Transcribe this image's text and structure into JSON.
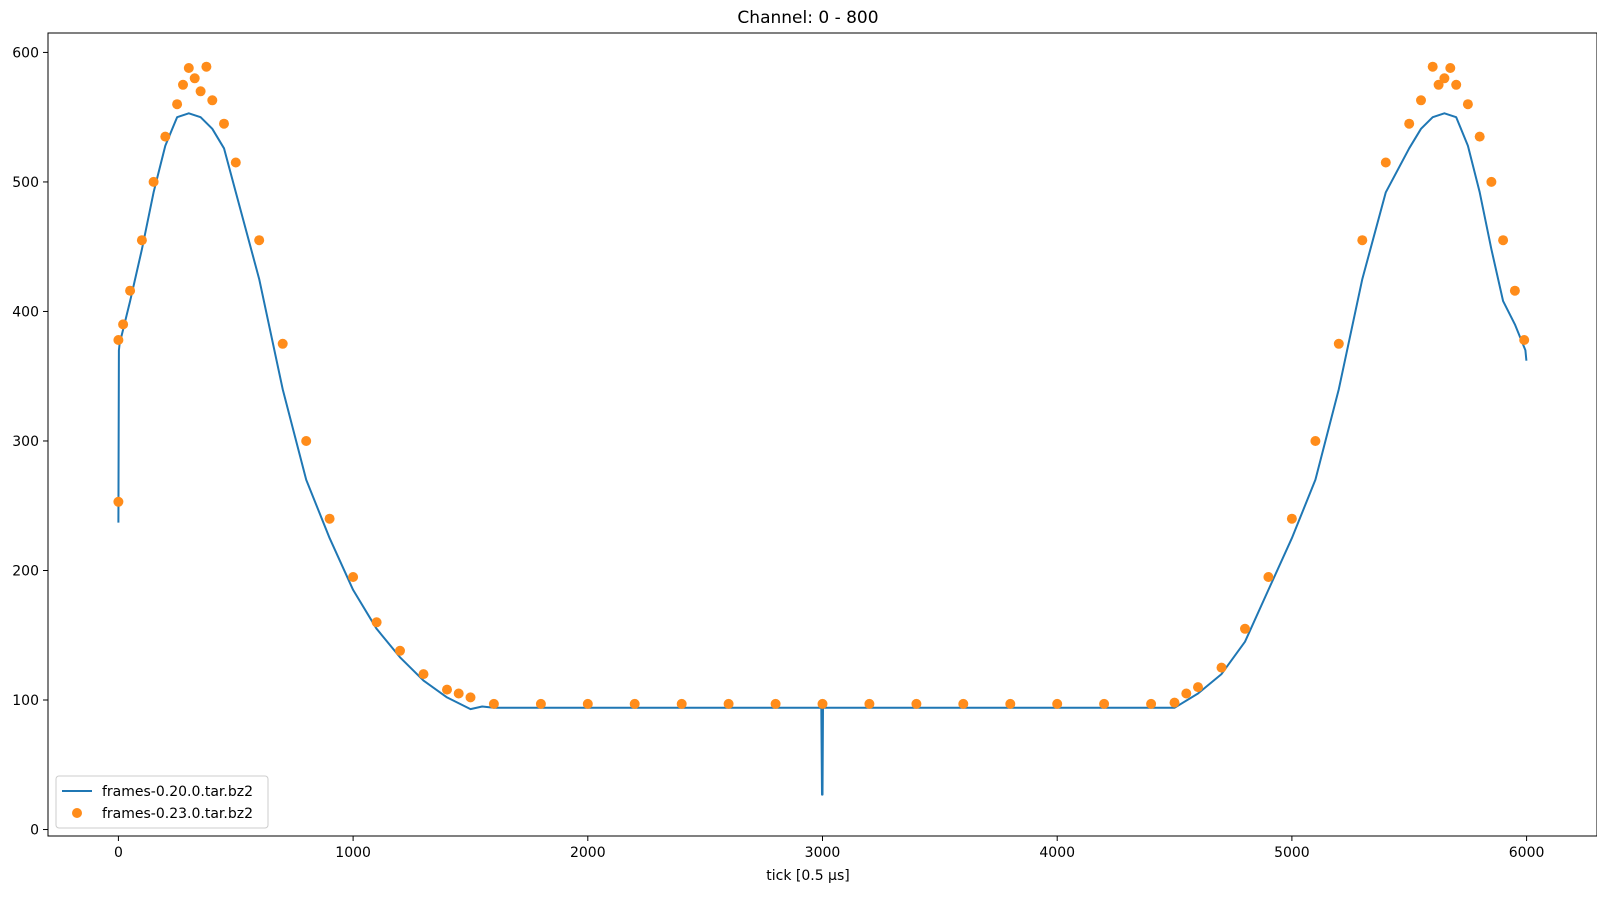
{
  "chart_data": {
    "type": "scatter",
    "title": "Channel: 0 - 800",
    "xlabel": "tick [0.5 μs]",
    "ylabel": "",
    "xlim": [
      -300,
      6300
    ],
    "ylim": [
      -5,
      615
    ],
    "x_ticks": [
      0,
      1000,
      2000,
      3000,
      4000,
      5000,
      6000
    ],
    "y_ticks": [
      0,
      100,
      200,
      300,
      400,
      500,
      600
    ],
    "grid": false,
    "legend_position": "lower-left",
    "series": [
      {
        "name": "frames-0.20.0.tar.bz2",
        "kind": "line",
        "color": "#1f77b4",
        "x": [
          0,
          2,
          5,
          50,
          100,
          150,
          200,
          250,
          300,
          350,
          400,
          450,
          500,
          600,
          700,
          800,
          900,
          1000,
          1100,
          1200,
          1300,
          1400,
          1500,
          1550,
          1600,
          2000,
          2500,
          2995,
          2998,
          3000,
          3002,
          3005,
          3500,
          4000,
          4450,
          4500,
          4600,
          4700,
          4800,
          4900,
          5000,
          5100,
          5200,
          5300,
          5400,
          5500,
          5550,
          5600,
          5650,
          5700,
          5750,
          5800,
          5850,
          5900,
          5950,
          5995,
          5999
        ],
        "y": [
          237,
          370,
          375,
          408,
          448,
          492,
          528,
          550,
          553,
          550,
          541,
          526,
          492,
          425,
          340,
          270,
          225,
          185,
          155,
          133,
          115,
          102,
          93,
          95,
          94,
          94,
          94,
          94,
          27,
          27,
          94,
          94,
          94,
          94,
          94,
          94,
          105,
          120,
          145,
          185,
          225,
          270,
          340,
          425,
          492,
          526,
          541,
          550,
          553,
          550,
          528,
          492,
          448,
          408,
          390,
          370,
          362
        ]
      },
      {
        "name": "frames-0.23.0.tar.bz2",
        "kind": "scatter",
        "color": "#ff8c1a",
        "x": [
          0,
          0,
          20,
          50,
          100,
          150,
          200,
          250,
          275,
          300,
          325,
          350,
          375,
          400,
          450,
          500,
          600,
          700,
          800,
          900,
          1000,
          1100,
          1200,
          1300,
          1400,
          1450,
          1500,
          1600,
          1800,
          2000,
          2200,
          2400,
          2600,
          2800,
          3000,
          3200,
          3400,
          3600,
          3800,
          4000,
          4200,
          4400,
          4500,
          4550,
          4600,
          4700,
          4800,
          4900,
          5000,
          5100,
          5200,
          5300,
          5400,
          5500,
          5550,
          5600,
          5625,
          5650,
          5675,
          5700,
          5750,
          5800,
          5850,
          5900,
          5950,
          5990
        ],
        "y": [
          253,
          378,
          390,
          416,
          455,
          500,
          535,
          560,
          575,
          588,
          580,
          570,
          589,
          563,
          545,
          515,
          455,
          375,
          300,
          240,
          195,
          160,
          138,
          120,
          108,
          105,
          102,
          97,
          97,
          97,
          97,
          97,
          97,
          97,
          97,
          97,
          97,
          97,
          97,
          97,
          97,
          97,
          98,
          105,
          110,
          125,
          155,
          195,
          240,
          300,
          375,
          455,
          515,
          545,
          563,
          589,
          575,
          580,
          588,
          575,
          560,
          535,
          500,
          455,
          416,
          378
        ]
      }
    ]
  }
}
